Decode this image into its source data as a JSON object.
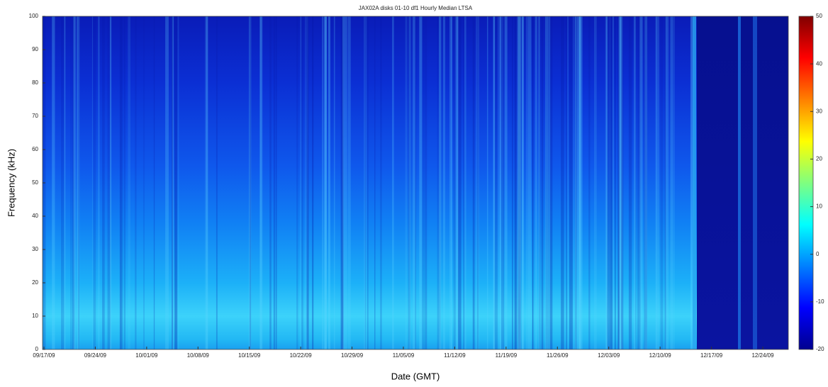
{
  "chart_data": {
    "type": "spectrogram",
    "title": "JAX02A disks 01-10 df1 Hourly Median LTSA",
    "x_label": "Date (GMT)",
    "y_label": "Frequency (kHz)",
    "categories": [
      "09/17/09",
      "09/24/09",
      "10/01/09",
      "10/08/09",
      "10/15/09",
      "10/22/09",
      "10/29/09",
      "11/05/09",
      "11/12/09",
      "11/19/09",
      "11/26/09",
      "12/03/09",
      "12/10/09",
      "12/17/09",
      "12/24/09"
    ],
    "ylim": [
      0,
      100
    ],
    "yticks": [
      0,
      10,
      20,
      30,
      40,
      50,
      60,
      70,
      80,
      90,
      100
    ],
    "clim": [
      -20,
      50
    ],
    "cticks": [
      -20,
      -10,
      0,
      10,
      20,
      30,
      40,
      50
    ],
    "colormap": "jet"
  }
}
